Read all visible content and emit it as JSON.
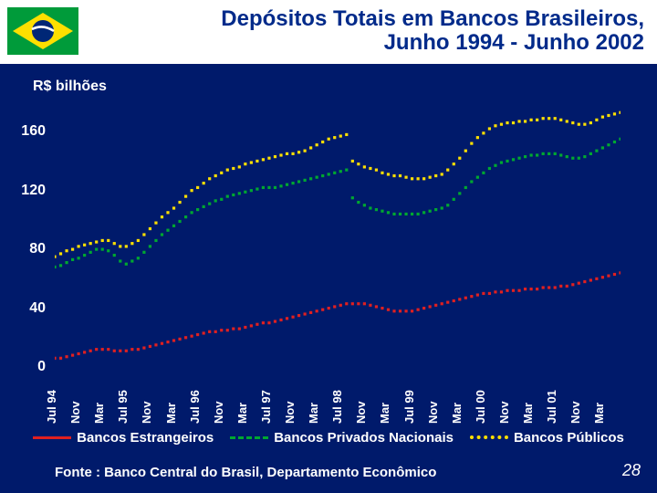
{
  "background_color": "#001a6b",
  "text_color": "#ffffff",
  "rule_color": "#ffffff",
  "title": {
    "line1": "Depósitos Totais em Bancos Brasileiros,",
    "line2": "Junho 1994 - Junho 2002",
    "fontsize": 24,
    "color": "#002a8a"
  },
  "header_bg": "#ffffff",
  "ylabel": "R$ bilhões",
  "ylabel_fontsize": 16,
  "tick_fontsize": 16,
  "xtick_fontsize": 13,
  "chart": {
    "type": "line",
    "ylim": [
      0,
      180
    ],
    "yticks": [
      0,
      40,
      80,
      120,
      160
    ],
    "x_count": 96,
    "x_labels": [
      "Jul 94",
      "Nov",
      "Mar",
      "Jul 95",
      "Nov",
      "Mar",
      "Jul 96",
      "Nov",
      "Mar",
      "Jul 97",
      "Nov",
      "Mar",
      "Jul 98",
      "Nov",
      "Mar",
      "Jul 99",
      "Nov",
      "Mar",
      "Jul 00",
      "Nov",
      "Mar",
      "Jul 01",
      "Nov",
      "Mar"
    ],
    "x_label_every": 4,
    "line_width": 3,
    "marker_size": 3.2,
    "series": {
      "publicos": {
        "color": "#ffe000",
        "style": "dot",
        "values": [
          75,
          77,
          79,
          80,
          82,
          83,
          84,
          85,
          86,
          86,
          84,
          82,
          82,
          84,
          86,
          90,
          94,
          98,
          102,
          105,
          108,
          112,
          116,
          120,
          122,
          125,
          128,
          130,
          132,
          134,
          135,
          136,
          138,
          139,
          140,
          141,
          142,
          143,
          144,
          145,
          145,
          146,
          147,
          149,
          151,
          153,
          155,
          156,
          157,
          158,
          140,
          138,
          136,
          135,
          134,
          132,
          131,
          130,
          130,
          129,
          128,
          128,
          128,
          129,
          130,
          131,
          134,
          138,
          142,
          147,
          152,
          156,
          159,
          162,
          164,
          165,
          166,
          166,
          167,
          167,
          168,
          168,
          169,
          169,
          169,
          168,
          167,
          166,
          165,
          165,
          166,
          168,
          170,
          171,
          172,
          173
        ]
      },
      "privados": {
        "color": "#00a830",
        "style": "dash",
        "values": [
          68,
          69,
          71,
          73,
          74,
          76,
          78,
          80,
          80,
          79,
          76,
          72,
          70,
          72,
          74,
          78,
          82,
          86,
          90,
          93,
          96,
          99,
          102,
          105,
          107,
          109,
          111,
          113,
          114,
          116,
          117,
          118,
          119,
          120,
          121,
          122,
          122,
          122,
          123,
          124,
          125,
          126,
          127,
          128,
          129,
          130,
          131,
          132,
          133,
          134,
          115,
          112,
          110,
          108,
          107,
          106,
          105,
          104,
          104,
          104,
          104,
          104,
          105,
          106,
          107,
          108,
          110,
          114,
          118,
          122,
          126,
          129,
          132,
          135,
          137,
          139,
          140,
          141,
          142,
          143,
          144,
          144,
          145,
          145,
          145,
          144,
          143,
          142,
          142,
          143,
          145,
          147,
          149,
          151,
          153,
          155
        ]
      },
      "estrangeiros": {
        "color": "#e02020",
        "style": "solid",
        "values": [
          6,
          6,
          7,
          8,
          9,
          10,
          11,
          12,
          12,
          12,
          11,
          11,
          11,
          12,
          12,
          13,
          14,
          15,
          16,
          17,
          18,
          19,
          20,
          21,
          22,
          23,
          24,
          24,
          25,
          25,
          26,
          26,
          27,
          28,
          29,
          30,
          30,
          31,
          32,
          33,
          34,
          35,
          36,
          37,
          38,
          39,
          40,
          41,
          42,
          43,
          43,
          43,
          43,
          42,
          41,
          40,
          39,
          38,
          38,
          38,
          38,
          39,
          40,
          41,
          42,
          43,
          44,
          45,
          46,
          47,
          48,
          49,
          50,
          50,
          51,
          51,
          52,
          52,
          52,
          53,
          53,
          53,
          54,
          54,
          54,
          55,
          55,
          56,
          57,
          58,
          59,
          60,
          61,
          62,
          63,
          64
        ]
      }
    }
  },
  "legend": {
    "fontsize": 15,
    "items": [
      {
        "label": "Bancos Estrangeiros",
        "series": "estrangeiros"
      },
      {
        "label": "Bancos Privados Nacionais",
        "series": "privados"
      },
      {
        "label": "Bancos Públicos",
        "series": "publicos"
      }
    ]
  },
  "source": "Fonte : Banco Central do Brasil, Departamento Econômico",
  "source_fontsize": 15,
  "page_number": "28",
  "page_fontsize": 18,
  "flag_colors": {
    "green": "#009b3a",
    "yellow": "#fedf00",
    "blue": "#002776"
  }
}
